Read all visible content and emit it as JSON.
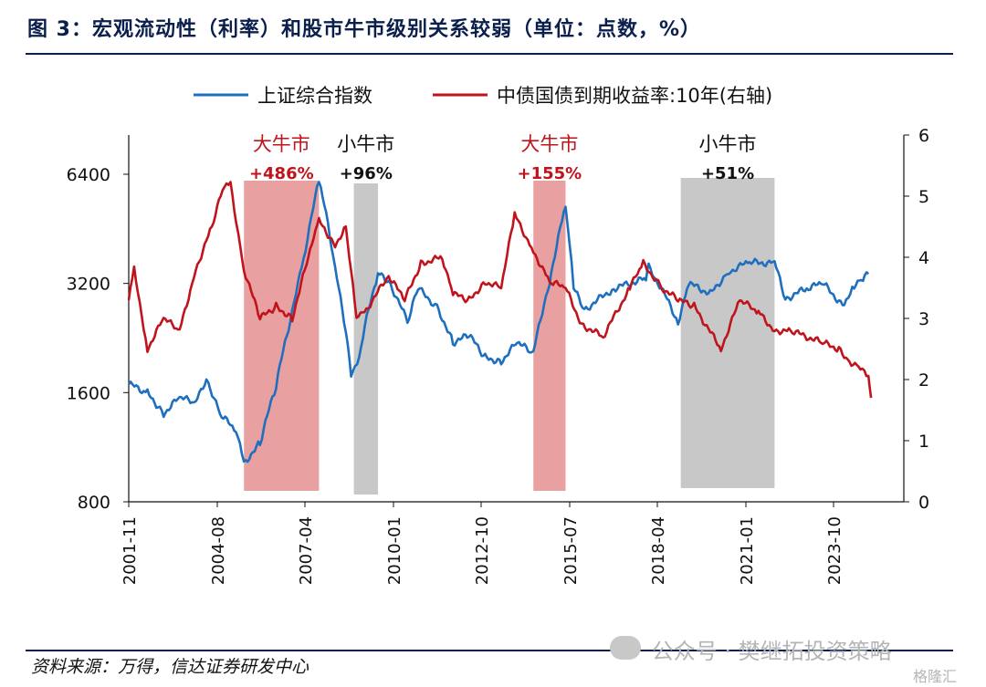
{
  "header": {
    "title": "图 3：宏观流动性（利率）和股市牛市级别关系较弱（单位：点数，%）"
  },
  "footer": {
    "source": "资料来源：万得，信达证券研发中心",
    "watermark": "公众号 · 樊继拓投资策略",
    "watermark2": "格隆汇"
  },
  "chart_data": {
    "type": "line",
    "title": "",
    "x_tick_labels": [
      "2001-11",
      "2004-08",
      "2007-04",
      "2010-01",
      "2012-10",
      "2015-07",
      "2018-04",
      "2021-01",
      "2023-10"
    ],
    "y_left": {
      "scale": "log",
      "range": [
        800,
        9000
      ],
      "tick_labels": [
        "800",
        "1600",
        "3200",
        "6400"
      ]
    },
    "y_right": {
      "range": [
        0,
        6
      ],
      "tick_labels": [
        "0",
        "1",
        "2",
        "3",
        "4",
        "5",
        "6"
      ]
    },
    "legend": {
      "placement": "top",
      "entries": [
        "上证综合指数",
        "中债国债到期收益率:10年(右轴)"
      ]
    },
    "colors": {
      "index": "#1f6fbf",
      "yield": "#c0141c",
      "bull_big": "#e8a0a0",
      "bull_small": "#c8c8c8"
    },
    "series": [
      {
        "name": "上证综合指数",
        "axis": "left",
        "points": [
          [
            "2001-11",
            1690
          ],
          [
            "2002-06",
            1600
          ],
          [
            "2002-12",
            1400
          ],
          [
            "2003-06",
            1550
          ],
          [
            "2003-12",
            1500
          ],
          [
            "2004-04",
            1750
          ],
          [
            "2004-09",
            1400
          ],
          [
            "2005-03",
            1250
          ],
          [
            "2005-06",
            1020
          ],
          [
            "2005-12",
            1160
          ],
          [
            "2006-06",
            1650
          ],
          [
            "2006-12",
            2650
          ],
          [
            "2007-05",
            4000
          ],
          [
            "2007-10",
            6100
          ],
          [
            "2008-04",
            3500
          ],
          [
            "2008-10",
            1800
          ],
          [
            "2009-01",
            2000
          ],
          [
            "2009-08",
            3400
          ],
          [
            "2009-12",
            3250
          ],
          [
            "2010-07",
            2500
          ],
          [
            "2010-11",
            3100
          ],
          [
            "2011-06",
            2750
          ],
          [
            "2011-12",
            2200
          ],
          [
            "2012-06",
            2300
          ],
          [
            "2012-12",
            2000
          ],
          [
            "2013-06",
            1950
          ],
          [
            "2013-12",
            2200
          ],
          [
            "2014-06",
            2050
          ],
          [
            "2014-12",
            3200
          ],
          [
            "2015-06",
            5200
          ],
          [
            "2015-09",
            3100
          ],
          [
            "2016-01",
            2700
          ],
          [
            "2016-12",
            3100
          ],
          [
            "2017-12",
            3300
          ],
          [
            "2018-01",
            3550
          ],
          [
            "2018-12",
            2500
          ],
          [
            "2019-04",
            3200
          ],
          [
            "2019-12",
            3000
          ],
          [
            "2020-07",
            3450
          ],
          [
            "2021-02",
            3650
          ],
          [
            "2021-12",
            3650
          ],
          [
            "2022-04",
            2900
          ],
          [
            "2022-12",
            3100
          ],
          [
            "2023-06",
            3200
          ],
          [
            "2024-02",
            2750
          ],
          [
            "2024-05",
            3150
          ],
          [
            "2024-09",
            3300
          ],
          [
            "2024-11",
            3400
          ]
        ]
      },
      {
        "name": "中债国债到期收益率:10年(右轴)",
        "axis": "right",
        "points": [
          [
            "2001-11",
            3.3
          ],
          [
            "2002-01",
            3.8
          ],
          [
            "2002-06",
            2.5
          ],
          [
            "2002-12",
            3.0
          ],
          [
            "2003-06",
            2.8
          ],
          [
            "2003-12",
            3.8
          ],
          [
            "2004-06",
            4.5
          ],
          [
            "2004-10",
            5.1
          ],
          [
            "2005-01",
            5.2
          ],
          [
            "2005-06",
            3.8
          ],
          [
            "2005-12",
            3.0
          ],
          [
            "2006-06",
            3.2
          ],
          [
            "2006-12",
            3.0
          ],
          [
            "2007-06",
            4.0
          ],
          [
            "2007-10",
            4.6
          ],
          [
            "2008-04",
            4.2
          ],
          [
            "2008-08",
            4.5
          ],
          [
            "2008-12",
            3.0
          ],
          [
            "2009-03",
            3.1
          ],
          [
            "2009-12",
            3.7
          ],
          [
            "2010-06",
            3.3
          ],
          [
            "2010-12",
            3.9
          ],
          [
            "2011-08",
            4.0
          ],
          [
            "2011-12",
            3.4
          ],
          [
            "2012-06",
            3.3
          ],
          [
            "2012-12",
            3.6
          ],
          [
            "2013-06",
            3.5
          ],
          [
            "2013-11",
            4.7
          ],
          [
            "2014-06",
            4.1
          ],
          [
            "2014-12",
            3.6
          ],
          [
            "2015-06",
            3.5
          ],
          [
            "2015-12",
            2.9
          ],
          [
            "2016-08",
            2.7
          ],
          [
            "2017-06",
            3.5
          ],
          [
            "2017-11",
            3.9
          ],
          [
            "2018-06",
            3.5
          ],
          [
            "2018-12",
            3.3
          ],
          [
            "2019-06",
            3.2
          ],
          [
            "2020-04",
            2.5
          ],
          [
            "2020-11",
            3.3
          ],
          [
            "2021-06",
            3.1
          ],
          [
            "2021-12",
            2.8
          ],
          [
            "2022-06",
            2.8
          ],
          [
            "2023-06",
            2.6
          ],
          [
            "2023-12",
            2.5
          ],
          [
            "2024-04",
            2.3
          ],
          [
            "2024-08",
            2.2
          ],
          [
            "2024-11",
            2.0
          ],
          [
            "2024-12",
            1.7
          ]
        ]
      }
    ],
    "bands": [
      {
        "start": "2005-06",
        "end": "2007-10",
        "kind": "big",
        "label": "大牛市",
        "value_label": "+486%"
      },
      {
        "start": "2008-11",
        "end": "2009-08",
        "kind": "small",
        "label": "小牛市",
        "value_label": "+96%"
      },
      {
        "start": "2014-06",
        "end": "2015-06",
        "kind": "big",
        "label": "大牛市",
        "value_label": "+155%"
      },
      {
        "start": "2019-01",
        "end": "2021-12",
        "kind": "small",
        "label": "小牛市",
        "value_label": "+51%"
      }
    ]
  }
}
